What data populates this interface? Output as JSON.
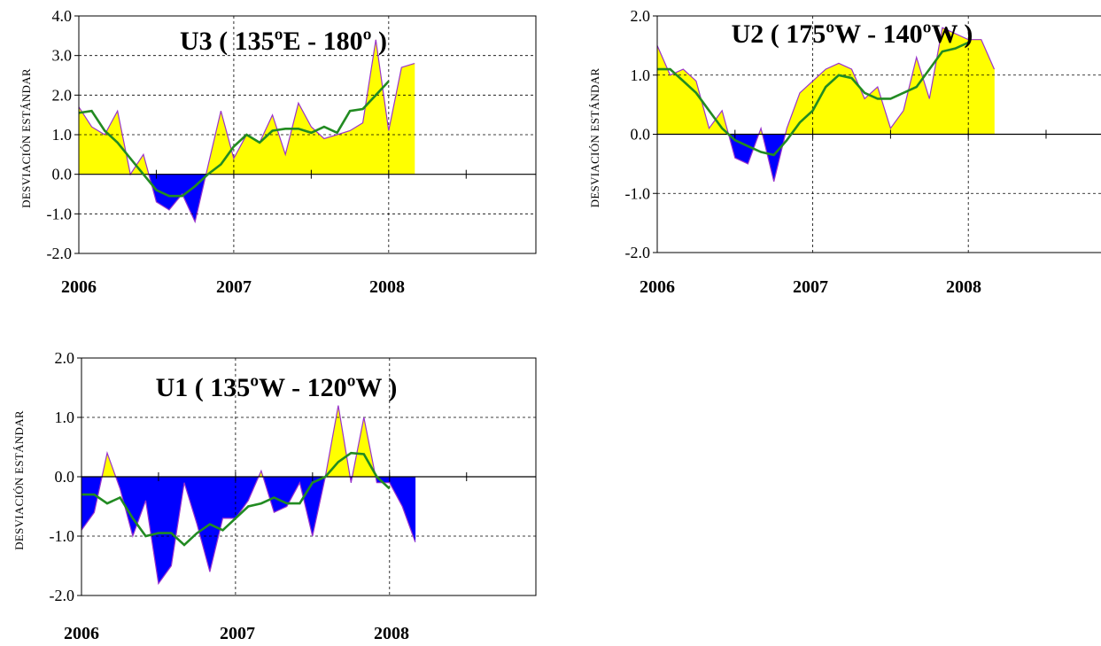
{
  "chart_data": [
    {
      "type": "area",
      "title": "U3 ( 135ºE - 180º )",
      "ylabel": "DESVIACIÓN ESTÁNDAR",
      "ylim": [
        -2.0,
        4.0
      ],
      "yticks": [
        "4.0",
        "3.0",
        "2.0",
        "1.0",
        "0.0",
        "-1.0",
        "-2.0"
      ],
      "xlim": [
        2006.0,
        2008.95
      ],
      "xticks": [
        "2006",
        "2007",
        "2008"
      ],
      "grid": "dashed",
      "colors": {
        "positive": "#ffff00",
        "negative": "#0000ff",
        "outline": "#9933cc",
        "smooth": "#228b22"
      },
      "series": [
        {
          "kind": "monthly_anomaly",
          "x": [
            2006.0,
            2006.083,
            2006.167,
            2006.25,
            2006.333,
            2006.417,
            2006.5,
            2006.583,
            2006.667,
            2006.75,
            2006.833,
            2006.917,
            2007.0,
            2007.083,
            2007.167,
            2007.25,
            2007.333,
            2007.417,
            2007.5,
            2007.583,
            2007.667,
            2007.75,
            2007.833,
            2007.917,
            2008.0,
            2008.083,
            2008.167
          ],
          "values": [
            1.7,
            1.2,
            1.0,
            1.6,
            0.0,
            0.5,
            -0.7,
            -0.9,
            -0.5,
            -1.2,
            0.2,
            1.6,
            0.4,
            1.0,
            0.8,
            1.5,
            0.5,
            1.8,
            1.2,
            0.9,
            1.0,
            1.1,
            1.3,
            3.4,
            1.1,
            2.7,
            2.8
          ]
        },
        {
          "kind": "running_mean",
          "x": [
            2006.0,
            2006.083,
            2006.167,
            2006.25,
            2006.333,
            2006.417,
            2006.5,
            2006.583,
            2006.667,
            2006.75,
            2006.833,
            2006.917,
            2007.0,
            2007.083,
            2007.167,
            2007.25,
            2007.333,
            2007.417,
            2007.5,
            2007.583,
            2007.667,
            2007.75,
            2007.833,
            2007.917,
            2008.0
          ],
          "values": [
            1.55,
            1.6,
            1.1,
            0.8,
            0.4,
            0.0,
            -0.4,
            -0.55,
            -0.55,
            -0.3,
            0.0,
            0.25,
            0.7,
            1.0,
            0.8,
            1.1,
            1.15,
            1.15,
            1.05,
            1.2,
            1.05,
            1.6,
            1.65,
            2.0,
            2.35
          ]
        }
      ]
    },
    {
      "type": "area",
      "title": "U2 ( 175ºW - 140ºW )",
      "ylabel": "DESVIACIÓN ESTÁNDAR",
      "ylim": [
        -2.0,
        2.0
      ],
      "yticks": [
        "2.0",
        "1.0",
        "0.0",
        "-1.0",
        "-2.0"
      ],
      "xlim": [
        2006.0,
        2008.95
      ],
      "xticks": [
        "2006",
        "2007",
        "2008"
      ],
      "grid": "dashed",
      "colors": {
        "positive": "#ffff00",
        "negative": "#0000ff",
        "outline": "#9933cc",
        "smooth": "#228b22"
      },
      "series": [
        {
          "kind": "monthly_anomaly",
          "x": [
            2006.0,
            2006.083,
            2006.167,
            2006.25,
            2006.333,
            2006.417,
            2006.5,
            2006.583,
            2006.667,
            2006.75,
            2006.833,
            2006.917,
            2007.0,
            2007.083,
            2007.167,
            2007.25,
            2007.333,
            2007.417,
            2007.5,
            2007.583,
            2007.667,
            2007.75,
            2007.833,
            2007.917,
            2008.0,
            2008.083,
            2008.167
          ],
          "values": [
            1.5,
            1.0,
            1.1,
            0.9,
            0.1,
            0.4,
            -0.4,
            -0.5,
            0.1,
            -0.8,
            0.1,
            0.7,
            0.9,
            1.1,
            1.2,
            1.1,
            0.6,
            0.8,
            0.1,
            0.4,
            1.3,
            0.6,
            1.8,
            1.7,
            1.6,
            1.6,
            1.1
          ]
        },
        {
          "kind": "running_mean",
          "x": [
            2006.0,
            2006.083,
            2006.167,
            2006.25,
            2006.333,
            2006.417,
            2006.5,
            2006.583,
            2006.667,
            2006.75,
            2006.833,
            2006.917,
            2007.0,
            2007.083,
            2007.167,
            2007.25,
            2007.333,
            2007.417,
            2007.5,
            2007.583,
            2007.667,
            2007.75,
            2007.833,
            2007.917,
            2008.0
          ],
          "values": [
            1.1,
            1.1,
            0.9,
            0.7,
            0.4,
            0.1,
            -0.1,
            -0.2,
            -0.3,
            -0.35,
            -0.1,
            0.2,
            0.4,
            0.8,
            1.0,
            0.95,
            0.7,
            0.6,
            0.6,
            0.7,
            0.8,
            1.1,
            1.4,
            1.45,
            1.55
          ]
        }
      ]
    },
    {
      "type": "area",
      "title": "U1 ( 135ºW - 120ºW )",
      "ylabel": "DESVIACIÓN ESTÁNDAR",
      "ylim": [
        -2.0,
        2.0
      ],
      "yticks": [
        "2.0",
        "1.0",
        "0.0",
        "-1.0",
        "-2.0"
      ],
      "xlim": [
        2006.0,
        2008.95
      ],
      "xticks": [
        "2006",
        "2007",
        "2008"
      ],
      "grid": "dashed",
      "colors": {
        "positive": "#ffff00",
        "negative": "#0000ff",
        "outline": "#9933cc",
        "smooth": "#228b22"
      },
      "series": [
        {
          "kind": "monthly_anomaly",
          "x": [
            2006.0,
            2006.083,
            2006.167,
            2006.25,
            2006.333,
            2006.417,
            2006.5,
            2006.583,
            2006.667,
            2006.75,
            2006.833,
            2006.917,
            2007.0,
            2007.083,
            2007.167,
            2007.25,
            2007.333,
            2007.417,
            2007.5,
            2007.583,
            2007.667,
            2007.75,
            2007.833,
            2007.917,
            2008.0,
            2008.083,
            2008.167
          ],
          "values": [
            -0.9,
            -0.6,
            0.4,
            -0.2,
            -1.0,
            -0.4,
            -1.8,
            -1.5,
            -0.1,
            -0.8,
            -1.6,
            -0.7,
            -0.7,
            -0.4,
            0.1,
            -0.6,
            -0.5,
            -0.1,
            -1.0,
            0.0,
            1.2,
            -0.1,
            1.0,
            -0.1,
            -0.1,
            -0.5,
            -1.1
          ]
        },
        {
          "kind": "running_mean",
          "x": [
            2006.0,
            2006.083,
            2006.167,
            2006.25,
            2006.333,
            2006.417,
            2006.5,
            2006.583,
            2006.667,
            2006.75,
            2006.833,
            2006.917,
            2007.0,
            2007.083,
            2007.167,
            2007.25,
            2007.333,
            2007.417,
            2007.5,
            2007.583,
            2007.667,
            2007.75,
            2007.833,
            2007.917,
            2008.0
          ],
          "values": [
            -0.3,
            -0.3,
            -0.45,
            -0.35,
            -0.7,
            -1.0,
            -0.95,
            -0.95,
            -1.15,
            -0.95,
            -0.8,
            -0.9,
            -0.7,
            -0.5,
            -0.45,
            -0.35,
            -0.45,
            -0.45,
            -0.1,
            0.0,
            0.25,
            0.4,
            0.38,
            0.0,
            -0.2
          ]
        }
      ]
    }
  ]
}
